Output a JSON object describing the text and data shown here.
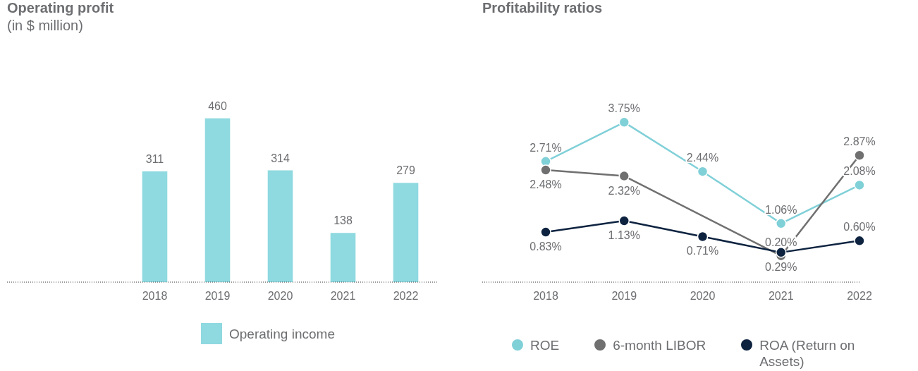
{
  "chart_data": [
    {
      "type": "bar",
      "title": "Operating profit",
      "subtitle": "(in $ million)",
      "categories": [
        "2018",
        "2019",
        "2020",
        "2021",
        "2022"
      ],
      "series": [
        {
          "name": "Operating income",
          "color": "#8fd9e0",
          "values": [
            311,
            460,
            314,
            138,
            279
          ]
        }
      ],
      "data_labels": true,
      "legend": "bottom",
      "grid": false
    },
    {
      "type": "line",
      "title": "Profitability ratios",
      "categories": [
        "2018",
        "2019",
        "2020",
        "2021",
        "2022"
      ],
      "series": [
        {
          "name": "ROE",
          "color": "#80d0d8",
          "values": [
            2.71,
            3.75,
            2.44,
            1.06,
            2.08
          ],
          "value_labels": [
            "2.71%",
            "3.75%",
            "2.44%",
            "1.06%",
            "2.08%"
          ]
        },
        {
          "name": "6-month LIBOR",
          "color": "#707070",
          "values": [
            2.48,
            2.32,
            null,
            0.2,
            2.87
          ],
          "value_labels": [
            "2.48%",
            "2.32%",
            null,
            "0.20%",
            "2.87%"
          ]
        },
        {
          "name": "ROA (Return on Assets)",
          "color": "#0d2340",
          "values": [
            0.83,
            1.13,
            0.71,
            0.29,
            0.6
          ],
          "value_labels": [
            "0.83%",
            "1.13%",
            "0.71%",
            "0.29%",
            "0.60%"
          ]
        }
      ],
      "marker": "circle",
      "line_style": "solid",
      "legend": "bottom",
      "grid": false
    }
  ]
}
